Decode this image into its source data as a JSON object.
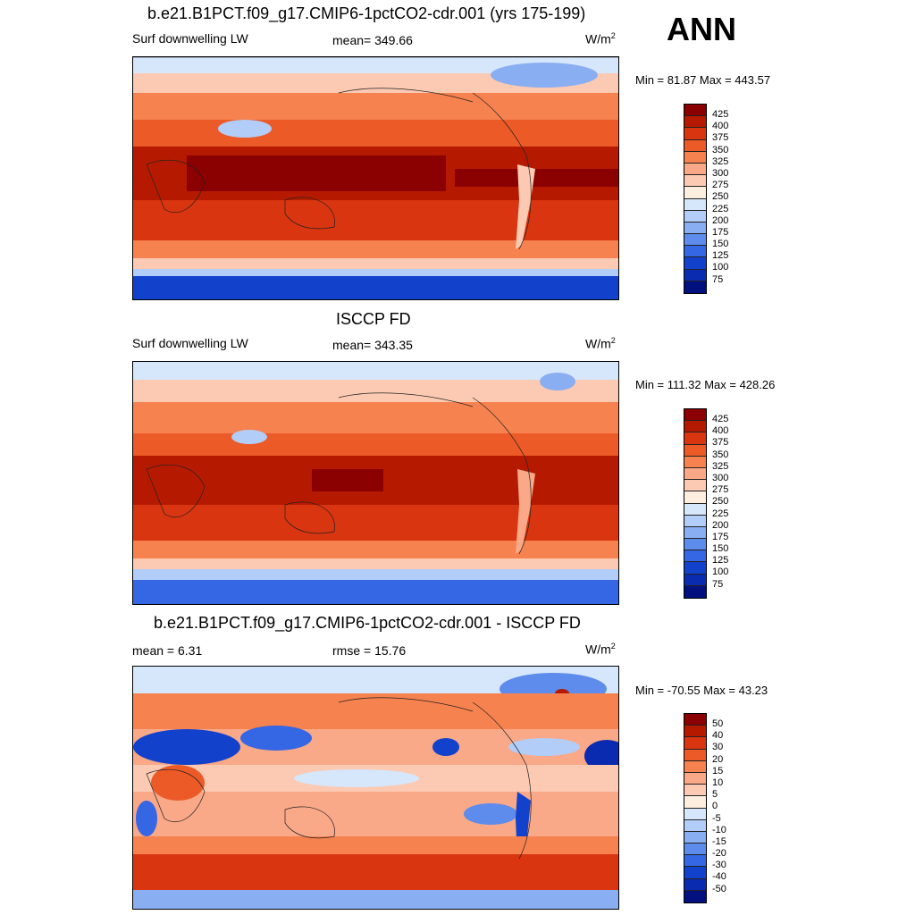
{
  "ann_label": "ANN",
  "panels": [
    {
      "title": "b.e21.B1PCT.f09_g17.CMIP6-1pctCO2-cdr.001 (yrs 175-199)",
      "left_label": "Surf downwelling LW",
      "center_label": "mean= 349.66",
      "unit_base": "W/m",
      "unit_exp": "2",
      "minmax": "Min =  81.87 Max = 443.57",
      "colorbar_ticks": [
        "425",
        "400",
        "375",
        "350",
        "325",
        "300",
        "275",
        "250",
        "225",
        "200",
        "175",
        "150",
        "125",
        "100",
        "75"
      ]
    },
    {
      "title": "ISCCP FD",
      "left_label": "Surf downwelling LW",
      "center_label": "mean= 343.35",
      "unit_base": "W/m",
      "unit_exp": "2",
      "minmax": "Min = 111.32 Max = 428.26",
      "colorbar_ticks": [
        "425",
        "400",
        "375",
        "350",
        "325",
        "300",
        "275",
        "250",
        "225",
        "200",
        "175",
        "150",
        "125",
        "100",
        "75"
      ]
    },
    {
      "title": "b.e21.B1PCT.f09_g17.CMIP6-1pctCO2-cdr.001 - ISCCP FD",
      "left_label": "mean =   6.31",
      "center_label": "rmse =  15.76",
      "unit_base": "W/m",
      "unit_exp": "2",
      "minmax": "Min = -70.55 Max =  43.23",
      "colorbar_ticks": [
        "50",
        "40",
        "30",
        "20",
        "15",
        "10",
        "5",
        "0",
        "-5",
        "-10",
        "-15",
        "-20",
        "-30",
        "-40",
        "-50"
      ]
    }
  ],
  "colors": {
    "abs_scale": [
      "#8b0000",
      "#b51a00",
      "#d83510",
      "#ec5a28",
      "#f5824f",
      "#f9a888",
      "#fccab2",
      "#fdeee0",
      "#d6e6fb",
      "#b2cdf7",
      "#8aaef2",
      "#5e8cec",
      "#3566e3",
      "#1241cc",
      "#0a2ab0",
      "#00117f"
    ],
    "diff_scale": [
      "#8b0000",
      "#b51a00",
      "#d83510",
      "#ec5a28",
      "#f5824f",
      "#f9a888",
      "#fccab2",
      "#fdeee0",
      "#d6e6fb",
      "#b2cdf7",
      "#8aaef2",
      "#5e8cec",
      "#3566e3",
      "#1241cc",
      "#0a2ab0",
      "#00117f"
    ]
  }
}
